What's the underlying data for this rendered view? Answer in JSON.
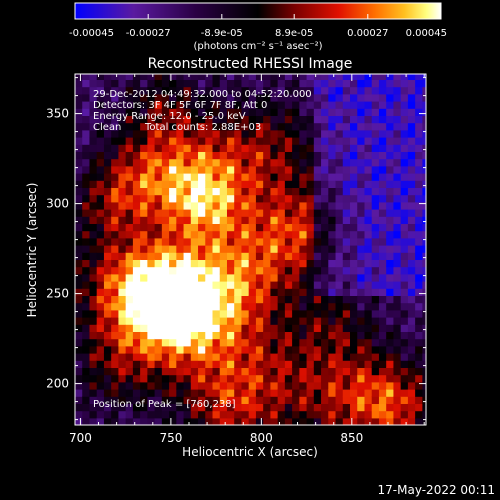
{
  "chart_data": {
    "type": "heatmap",
    "title": "Reconstructed RHESSI Image",
    "xlabel": "Heliocentric X (arcsec)",
    "ylabel": "Heliocentric Y (arcsec)",
    "xlim": [
      697,
      891
    ],
    "ylim": [
      177,
      372
    ],
    "x_ticks": [
      700,
      750,
      800,
      850
    ],
    "y_ticks": [
      200,
      250,
      300,
      350
    ],
    "colorbar": {
      "min": -0.00045,
      "max": 0.00045,
      "tick_values": [
        -0.00045,
        -0.00027,
        -8.9e-05,
        8.9e-05,
        0.00027,
        0.00045
      ],
      "tick_labels": [
        "-0.00045",
        "-0.00027",
        "-8.9e-05",
        "8.9e-05",
        "0.00027",
        "0.00045"
      ],
      "unit_label": "(photons cm⁻² s⁻¹ asec⁻²)",
      "colors": [
        "#0000ff",
        "#5a1aa0",
        "#2a0044",
        "#000000",
        "#7a0000",
        "#e01000",
        "#ff7000",
        "#ffc020",
        "#ffff80",
        "#ffffff"
      ]
    },
    "annotations": {
      "line1": "29-Dec-2012 04:49:32.000 to 04:52:20.000",
      "line2": "Detectors: 3F 4F 5F 6F 7F 8F, Att 0",
      "line3": "Energy Range: 12.0 - 25.0 keV",
      "line4_method": "Clean",
      "line4_counts": "Total counts: 2.88E+03",
      "peak_text": "Position of Peak = [760,238]"
    },
    "peak": [
      760,
      238
    ],
    "grid": false
  },
  "footer": {
    "timestamp": "17-May-2022 00:11"
  }
}
